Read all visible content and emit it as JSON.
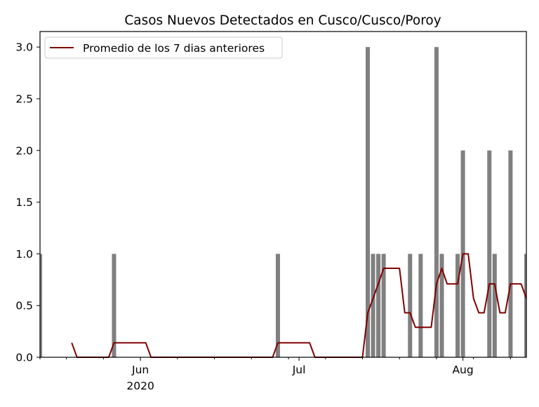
{
  "chart_data": {
    "type": "bar",
    "title": "Casos Nuevos Detectados en Cusco/Cusco/Poroy",
    "xlabel": "",
    "ylabel": "",
    "ylim": [
      0,
      3.15
    ],
    "xlim": [
      "2020-05-13",
      "2020-08-13"
    ],
    "grid": false,
    "legend_position": "top-left",
    "bar_color": "#808080",
    "line_color": "#800000",
    "y_ticks": [
      "0.0",
      "0.5",
      "1.0",
      "1.5",
      "2.0",
      "2.5",
      "3.0"
    ],
    "x_major_ticks": [
      {
        "date": "2020-06-01",
        "label": "Jun",
        "sublabel": "2020"
      },
      {
        "date": "2020-07-01",
        "label": "Jul",
        "sublabel": ""
      },
      {
        "date": "2020-08-01",
        "label": "Aug",
        "sublabel": ""
      }
    ],
    "x_minor_ticks": [
      "2020-05-13",
      "2020-05-18",
      "2020-05-25",
      "2020-06-08",
      "2020-06-15",
      "2020-06-22",
      "2020-06-29",
      "2020-07-06",
      "2020-07-13",
      "2020-07-20",
      "2020-07-27",
      "2020-08-03",
      "2020-08-10"
    ],
    "bars": [
      {
        "date": "2020-05-13",
        "value": 1
      },
      {
        "date": "2020-05-27",
        "value": 1
      },
      {
        "date": "2020-06-27",
        "value": 1
      },
      {
        "date": "2020-07-14",
        "value": 3
      },
      {
        "date": "2020-07-15",
        "value": 1
      },
      {
        "date": "2020-07-16",
        "value": 1
      },
      {
        "date": "2020-07-17",
        "value": 1
      },
      {
        "date": "2020-07-22",
        "value": 1
      },
      {
        "date": "2020-07-24",
        "value": 1
      },
      {
        "date": "2020-07-27",
        "value": 3
      },
      {
        "date": "2020-07-28",
        "value": 1
      },
      {
        "date": "2020-07-31",
        "value": 1
      },
      {
        "date": "2020-08-01",
        "value": 2
      },
      {
        "date": "2020-08-06",
        "value": 2
      },
      {
        "date": "2020-08-07",
        "value": 1
      },
      {
        "date": "2020-08-10",
        "value": 2
      },
      {
        "date": "2020-08-13",
        "value": 1
      }
    ],
    "series": [
      {
        "name": "Promedio de los 7 dias anteriores",
        "points": [
          {
            "date": "2020-05-19",
            "value": 0.14
          },
          {
            "date": "2020-05-20",
            "value": 0.0
          },
          {
            "date": "2020-05-26",
            "value": 0.0
          },
          {
            "date": "2020-05-27",
            "value": 0.14
          },
          {
            "date": "2020-06-02",
            "value": 0.14
          },
          {
            "date": "2020-06-03",
            "value": 0.0
          },
          {
            "date": "2020-06-26",
            "value": 0.0
          },
          {
            "date": "2020-06-27",
            "value": 0.14
          },
          {
            "date": "2020-07-03",
            "value": 0.14
          },
          {
            "date": "2020-07-04",
            "value": 0.0
          },
          {
            "date": "2020-07-13",
            "value": 0.0
          },
          {
            "date": "2020-07-14",
            "value": 0.43
          },
          {
            "date": "2020-07-15",
            "value": 0.57
          },
          {
            "date": "2020-07-16",
            "value": 0.71
          },
          {
            "date": "2020-07-17",
            "value": 0.86
          },
          {
            "date": "2020-07-20",
            "value": 0.86
          },
          {
            "date": "2020-07-21",
            "value": 0.43
          },
          {
            "date": "2020-07-22",
            "value": 0.43
          },
          {
            "date": "2020-07-23",
            "value": 0.29
          },
          {
            "date": "2020-07-26",
            "value": 0.29
          },
          {
            "date": "2020-07-27",
            "value": 0.71
          },
          {
            "date": "2020-07-28",
            "value": 0.86
          },
          {
            "date": "2020-07-29",
            "value": 0.71
          },
          {
            "date": "2020-07-31",
            "value": 0.71
          },
          {
            "date": "2020-08-01",
            "value": 1.0
          },
          {
            "date": "2020-08-02",
            "value": 1.0
          },
          {
            "date": "2020-08-03",
            "value": 0.57
          },
          {
            "date": "2020-08-04",
            "value": 0.43
          },
          {
            "date": "2020-08-05",
            "value": 0.43
          },
          {
            "date": "2020-08-06",
            "value": 0.71
          },
          {
            "date": "2020-08-07",
            "value": 0.71
          },
          {
            "date": "2020-08-08",
            "value": 0.43
          },
          {
            "date": "2020-08-09",
            "value": 0.43
          },
          {
            "date": "2020-08-10",
            "value": 0.71
          },
          {
            "date": "2020-08-12",
            "value": 0.71
          },
          {
            "date": "2020-08-13",
            "value": 0.57
          }
        ]
      }
    ]
  }
}
